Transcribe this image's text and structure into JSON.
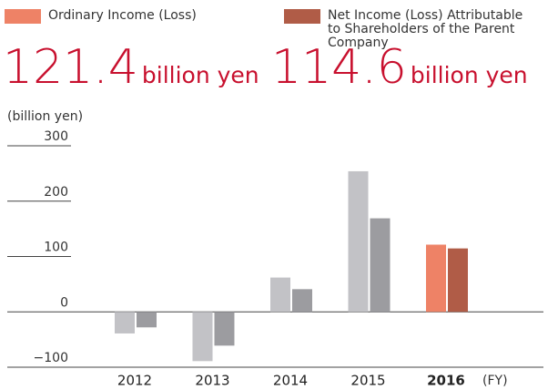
{
  "chart_data": {
    "type": "bar",
    "categories": [
      "2012",
      "2013",
      "2014",
      "2015",
      "2016"
    ],
    "series": [
      {
        "name": "Ordinary Income (Loss)",
        "color": "#ee8266",
        "past_color": "#c2c2c6",
        "values": [
          -39,
          -89,
          62,
          254,
          121.4
        ]
      },
      {
        "name": "Net Income (Loss) Attributable to Shareholders of the Parent Company",
        "color": "#b05c47",
        "past_color": "#9c9ca0",
        "values": [
          -28,
          -61,
          41,
          169,
          114.6
        ]
      }
    ],
    "value_unit": "billion yen",
    "ylabel": "(billion yen)",
    "xlabel": "(FY)",
    "highlight_index": 4,
    "ylim": [
      -100,
      300
    ],
    "yticks": [
      {
        "value": -100,
        "label": "−100"
      },
      0,
      100,
      200,
      300
    ]
  }
}
